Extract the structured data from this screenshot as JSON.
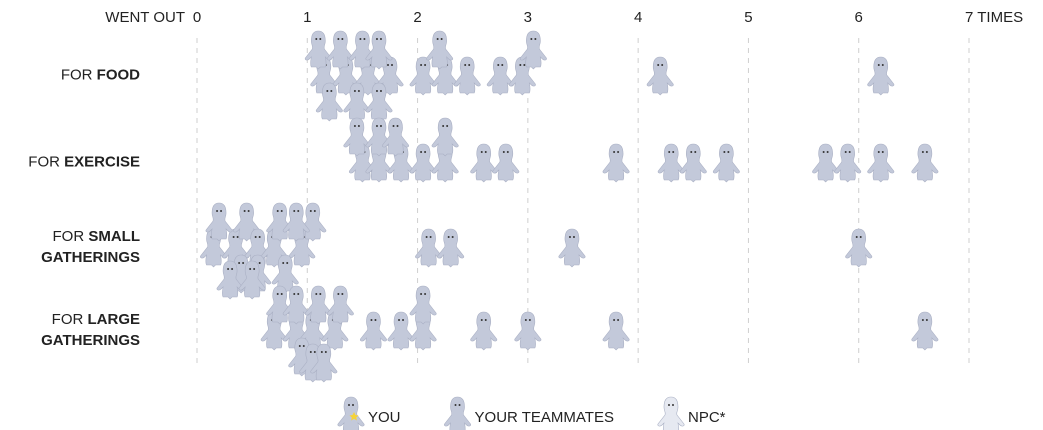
{
  "chart_data": {
    "type": "swarm",
    "x_label": "WENT OUT",
    "xlim": [
      0,
      7.3
    ],
    "xticks": [
      0,
      1,
      2,
      3,
      4,
      5,
      6,
      {
        "value": 7,
        "label": "7 TIMES"
      }
    ],
    "grid": true,
    "categories": [
      {
        "prefix": "FOR",
        "bold": "FOOD"
      },
      {
        "prefix": "FOR",
        "bold": "EXERCISE"
      },
      {
        "prefix": "FOR",
        "bold": "SMALL GATHERINGS"
      },
      {
        "prefix": "FOR",
        "bold": "LARGE GATHERINGS"
      }
    ],
    "series": [
      {
        "name": "YOU",
        "color": "#c3c9da"
      },
      {
        "name": "YOUR TEAMMATES",
        "color": "#c3c9da",
        "values": [
          [
            1.15,
            1.35,
            1.55,
            1.75,
            1.1,
            1.3,
            1.5,
            1.65,
            1.2,
            1.45,
            1.65,
            2.05,
            2.25,
            2.45,
            2.2,
            2.75,
            2.95,
            3.05,
            4.2,
            6.2
          ],
          [
            1.5,
            1.65,
            1.85,
            1.45,
            1.65,
            1.8,
            2.05,
            2.25,
            2.25,
            2.6,
            2.8,
            3.8,
            4.3,
            4.5,
            4.8,
            5.7,
            5.9,
            6.2,
            6.6
          ],
          [
            0.15,
            0.35,
            0.45,
            0.55,
            0.7,
            0.95,
            1.05,
            0.2,
            0.4,
            0.55,
            0.75,
            0.9,
            0.3,
            0.5,
            0.8,
            2.1,
            2.3,
            3.4,
            6.0
          ],
          [
            0.7,
            0.9,
            1.05,
            1.25,
            0.75,
            0.9,
            1.1,
            1.3,
            0.95,
            1.05,
            1.15,
            1.6,
            1.85,
            2.05,
            2.05,
            2.6,
            3.0,
            3.8,
            6.6
          ]
        ]
      },
      {
        "name": "NPC*",
        "color": "#e6e9f1"
      }
    ]
  }
}
